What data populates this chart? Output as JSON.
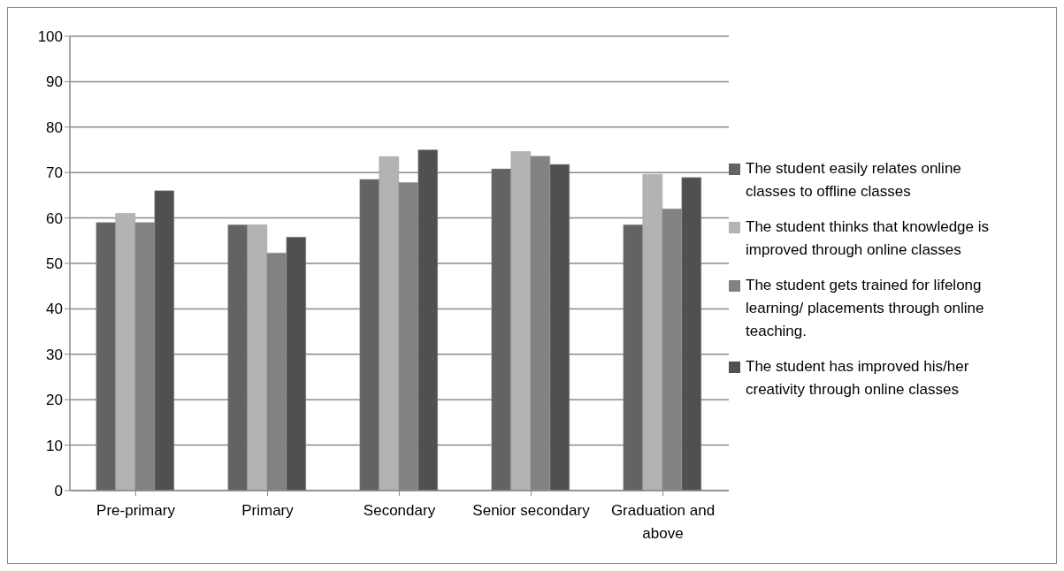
{
  "chart_data": {
    "type": "bar",
    "categories": [
      "Pre-primary",
      "Primary",
      "Secondary",
      "Senior secondary",
      "Graduation and above"
    ],
    "series": [
      {
        "name": "The student easily relates online classes to offline classes",
        "color": "#636363",
        "values": [
          59,
          58.5,
          68.5,
          70.8,
          58.5
        ]
      },
      {
        "name": "The student thinks that knowledge is improved through online classes",
        "color": "#b3b3b3",
        "values": [
          61,
          58.5,
          73.5,
          74.6,
          69.6
        ]
      },
      {
        "name": "The student gets trained for lifelong learning/ placements through online teaching.",
        "color": "#828282",
        "values": [
          59,
          52.3,
          67.8,
          73.6,
          62
        ]
      },
      {
        "name": "The student has improved his/her creativity through online classes",
        "color": "#505050",
        "values": [
          66,
          55.8,
          75,
          71.8,
          68.9
        ]
      }
    ],
    "ylim": [
      0,
      100
    ],
    "yticks": [
      0,
      10,
      20,
      30,
      40,
      50,
      60,
      70,
      80,
      90,
      100
    ],
    "grid": "y",
    "legend": "right"
  }
}
